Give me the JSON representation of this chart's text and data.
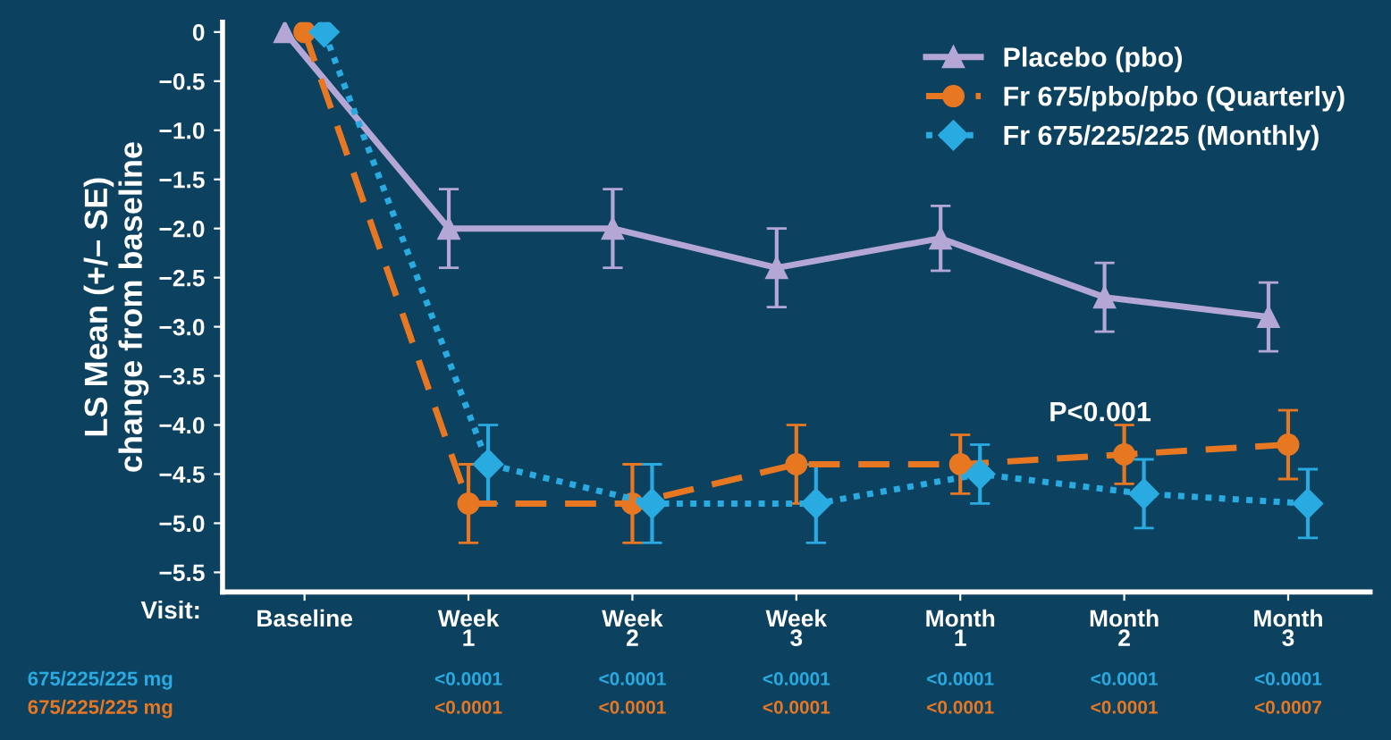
{
  "chart_data": {
    "type": "line",
    "ylabel": "LS Mean (+/– SE)\nchange from baseline",
    "xlabel": "Visit:",
    "categories": [
      "Baseline",
      "Week\n1",
      "Week\n2",
      "Week\n3",
      "Month\n1",
      "Month\n2",
      "Month\n3"
    ],
    "ylim": [
      -5.7,
      0.1
    ],
    "yticks": [
      {
        "value": 0,
        "label": "0"
      },
      {
        "value": -0.5,
        "label": "−0.5"
      },
      {
        "value": -1,
        "label": "−1.0"
      },
      {
        "value": -1.5,
        "label": "−1.5"
      },
      {
        "value": -2,
        "label": "−2.0"
      },
      {
        "value": -2.5,
        "label": "−2.5"
      },
      {
        "value": -3,
        "label": "−3.0"
      },
      {
        "value": -3.5,
        "label": "−3.5"
      },
      {
        "value": -4,
        "label": "−4.0"
      },
      {
        "value": -4.5,
        "label": "−4.5"
      },
      {
        "value": -5,
        "label": "−5.0"
      },
      {
        "value": -5.5,
        "label": "−5.5"
      }
    ],
    "series": [
      {
        "name": "Placebo (pbo)",
        "color": "#b4a7d6",
        "marker": "triangle",
        "line_style": "solid",
        "values": [
          0,
          -2.0,
          -2.0,
          -2.4,
          -2.1,
          -2.7,
          -2.9
        ],
        "errors": [
          null,
          0.4,
          0.4,
          0.4,
          0.33,
          0.35,
          0.35
        ]
      },
      {
        "name": "Fr 675/pbo/pbo (Quarterly)",
        "color": "#e87722",
        "marker": "circle",
        "line_style": "dashed",
        "values": [
          0,
          -4.8,
          -4.8,
          -4.4,
          -4.4,
          -4.3,
          -4.2
        ],
        "errors": [
          null,
          0.4,
          0.4,
          0.4,
          0.3,
          0.3,
          0.35
        ]
      },
      {
        "name": "Fr 675/225/225 (Monthly)",
        "color": "#29abe2",
        "marker": "diamond",
        "line_style": "dotted",
        "values": [
          0,
          -4.4,
          -4.8,
          -4.8,
          -4.5,
          -4.7,
          -4.8
        ],
        "errors": [
          null,
          0.4,
          0.4,
          0.4,
          0.3,
          0.35,
          0.35
        ]
      }
    ],
    "annotations": [
      "P<0.001",
      "675/225/225 mg",
      "<0.0001",
      "<0.0001",
      "<0.0001",
      "<0.0001",
      "<0.0001",
      "<0.0001",
      "675/225/225 mg",
      "<0.0001",
      "<0.0001",
      "<0.0001",
      "<0.0001",
      "<0.0001",
      "<0.0007"
    ],
    "grid": false,
    "legend": "top right"
  }
}
